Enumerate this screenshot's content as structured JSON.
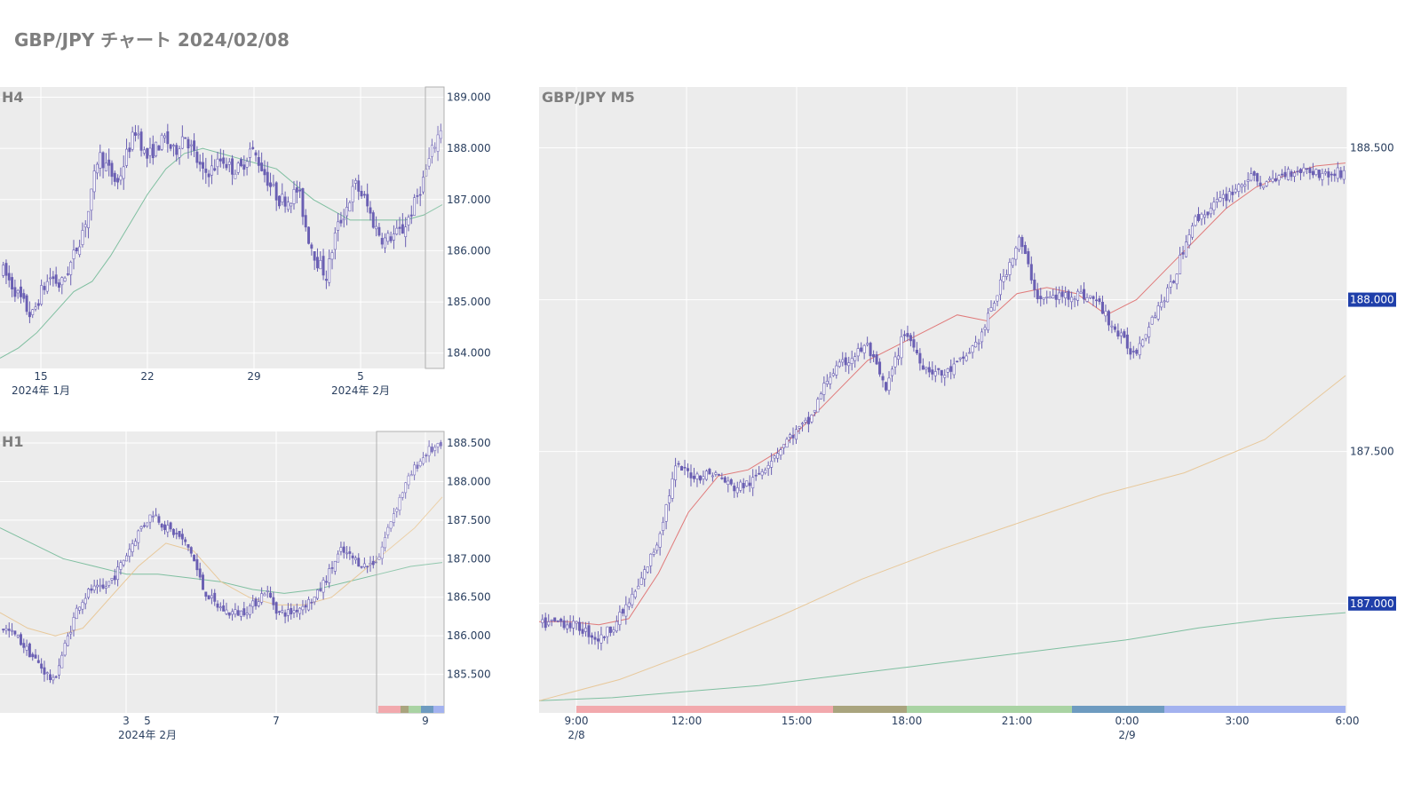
{
  "page_title": "GBP/JPY チャート 2024/02/08",
  "colors": {
    "plot_bg": "#ececec",
    "candle": "#6a5fb3",
    "ma_short": "#e07a7a",
    "ma_mid": "#e8c89a",
    "ma_long": "#7fbfa0",
    "badge_bg": "#1f3faa",
    "highlight_border": "#b0b0b0"
  },
  "panels": {
    "h4": {
      "title": "H4",
      "y_ticks": [
        "189.000",
        "188.000",
        "187.000",
        "186.000",
        "185.000",
        "184.000"
      ],
      "x_ticks": [
        {
          "label": "15",
          "sub": "2024年 1月"
        },
        {
          "label": "22",
          "sub": ""
        },
        {
          "label": "29",
          "sub": ""
        },
        {
          "label": "5",
          "sub": "2024年 2月"
        }
      ]
    },
    "h1": {
      "title": "H1",
      "y_ticks": [
        "188.500",
        "188.000",
        "187.500",
        "187.000",
        "186.500",
        "186.000",
        "185.500"
      ],
      "x_ticks": [
        {
          "label": "3",
          "sub": ""
        },
        {
          "label": "5",
          "sub": "2024年 2月"
        },
        {
          "label": "7",
          "sub": ""
        },
        {
          "label": "9",
          "sub": ""
        }
      ]
    },
    "m5": {
      "title": "GBP/JPY M5",
      "y_ticks": [
        "188.500",
        "188.000",
        "187.500",
        "187.000"
      ],
      "badges": [
        "188.000",
        "187.000"
      ],
      "x_ticks": [
        {
          "label": "9:00",
          "sub": "2/8"
        },
        {
          "label": "12:00",
          "sub": ""
        },
        {
          "label": "15:00",
          "sub": ""
        },
        {
          "label": "18:00",
          "sub": ""
        },
        {
          "label": "21:00",
          "sub": ""
        },
        {
          "label": "0:00",
          "sub": "2/9"
        },
        {
          "label": "3:00",
          "sub": ""
        },
        {
          "label": "6:00",
          "sub": ""
        }
      ],
      "sessions": [
        {
          "color": "#f2a9ad"
        },
        {
          "color": "#a9a47e"
        },
        {
          "color": "#a9d3a3"
        },
        {
          "color": "#6e9bc0"
        },
        {
          "color": "#a3b2ef"
        }
      ]
    }
  },
  "chart_data": [
    {
      "type": "candlestick",
      "panel": "H4",
      "ylim": [
        183.7,
        189.2
      ],
      "x_range": [
        "2024-01-10",
        "2024-02-09"
      ],
      "close_path": [
        185.6,
        185.3,
        185.0,
        184.7,
        185.2,
        185.5,
        185.3,
        185.7,
        186.2,
        186.8,
        187.9,
        187.6,
        187.3,
        187.9,
        188.4,
        187.8,
        188.0,
        188.2,
        187.9,
        188.3,
        187.9,
        187.5,
        187.6,
        187.8,
        187.6,
        187.6,
        188.0,
        187.7,
        187.3,
        187.0,
        187.0,
        187.2,
        186.3,
        185.8,
        185.5,
        186.4,
        186.8,
        187.3,
        187.0,
        186.5,
        186.2,
        186.3,
        186.4,
        186.8,
        187.3,
        187.9,
        188.4
      ],
      "ma": [
        183.9,
        184.1,
        184.4,
        184.8,
        185.2,
        185.4,
        185.9,
        186.5,
        187.1,
        187.6,
        187.9,
        188.0,
        187.9,
        187.8,
        187.7,
        187.6,
        187.3,
        187.0,
        186.8,
        186.6,
        186.6,
        186.6,
        186.6,
        186.7,
        186.9
      ]
    },
    {
      "type": "candlestick",
      "panel": "H1",
      "ylim": [
        185.0,
        188.65
      ],
      "x_range": [
        "2024-02-01",
        "2024-02-09"
      ],
      "close_path": [
        186.1,
        186.0,
        185.8,
        185.6,
        185.4,
        185.9,
        186.4,
        186.6,
        186.6,
        186.8,
        187.1,
        187.4,
        187.6,
        187.4,
        187.3,
        187.1,
        186.6,
        186.4,
        186.3,
        186.3,
        186.4,
        186.6,
        186.3,
        186.3,
        186.4,
        186.5,
        186.8,
        187.1,
        187.0,
        186.9,
        187.0,
        187.5,
        187.9,
        188.2,
        188.4,
        188.45
      ],
      "ma_mid": [
        186.3,
        186.1,
        186.0,
        186.1,
        186.5,
        186.9,
        187.2,
        187.1,
        186.7,
        186.5,
        186.4,
        186.4,
        186.5,
        186.8,
        187.1,
        187.4,
        187.8
      ],
      "ma_long": [
        187.4,
        187.2,
        187.0,
        186.9,
        186.8,
        186.8,
        186.75,
        186.7,
        186.6,
        186.55,
        186.6,
        186.7,
        186.8,
        186.9,
        186.95
      ]
    },
    {
      "type": "candlestick",
      "panel": "M5",
      "ylim": [
        186.64,
        188.7
      ],
      "x_range": [
        "2024-02-08 08:00",
        "2024-02-09 06:00"
      ],
      "close_path": [
        186.93,
        186.94,
        186.92,
        186.88,
        186.95,
        187.05,
        187.2,
        187.45,
        187.42,
        187.43,
        187.38,
        187.4,
        187.48,
        187.55,
        187.6,
        187.75,
        187.8,
        187.85,
        187.7,
        187.9,
        187.78,
        187.75,
        187.8,
        187.88,
        188.05,
        188.2,
        188.0,
        188.01,
        188.02,
        188.0,
        187.9,
        187.82,
        187.95,
        188.05,
        188.25,
        188.3,
        188.35,
        188.4,
        188.38,
        188.42,
        188.43,
        188.41,
        188.42
      ],
      "ma_short": [
        186.94,
        186.94,
        186.93,
        186.95,
        187.1,
        187.3,
        187.42,
        187.44,
        187.5,
        187.6,
        187.7,
        187.8,
        187.85,
        187.9,
        187.95,
        187.93,
        188.02,
        188.04,
        188.02,
        187.95,
        188.0,
        188.1,
        188.2,
        188.3,
        188.37,
        188.41,
        188.44,
        188.45
      ],
      "ma_mid": [
        186.68,
        186.75,
        186.85,
        186.96,
        187.08,
        187.18,
        187.27,
        187.36,
        187.43,
        187.54,
        187.75
      ],
      "ma_long": [
        186.68,
        186.69,
        186.71,
        186.73,
        186.76,
        186.79,
        186.82,
        186.85,
        186.88,
        186.92,
        186.95,
        186.97
      ]
    }
  ]
}
